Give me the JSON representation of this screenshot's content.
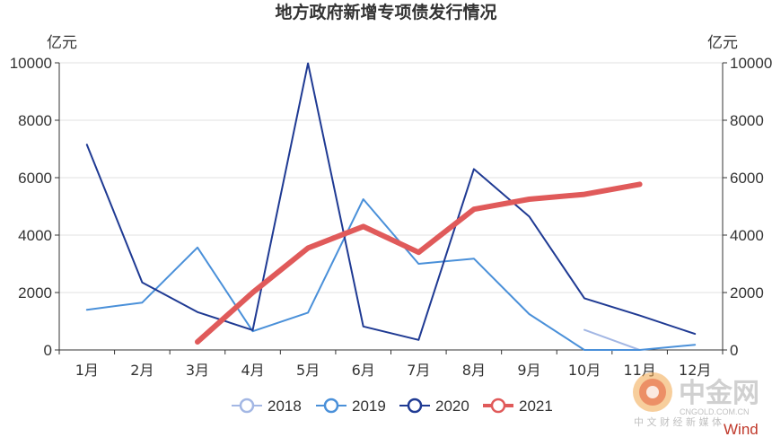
{
  "chart_data": {
    "type": "line",
    "title": "地方政府新增专项债发行情况",
    "ylabel_left": "亿元",
    "ylabel_right": "亿元",
    "ylim": [
      0,
      10000
    ],
    "yticks": [
      "0",
      "2000",
      "4000",
      "6000",
      "8000",
      "10000"
    ],
    "categories": [
      "1月",
      "2月",
      "3月",
      "4月",
      "5月",
      "6月",
      "7月",
      "8月",
      "9月",
      "10月",
      "11月",
      "12月"
    ],
    "grid": true,
    "legend_position": "bottom",
    "series": [
      {
        "name": "2018",
        "color": "#a3b7e4",
        "width": 2,
        "values": [
          null,
          null,
          null,
          null,
          null,
          null,
          null,
          null,
          null,
          700,
          0,
          null
        ]
      },
      {
        "name": "2019",
        "color": "#4a90d9",
        "width": 2,
        "values": [
          1400,
          1650,
          3570,
          650,
          1300,
          5250,
          3000,
          3180,
          1250,
          0,
          0,
          180
        ]
      },
      {
        "name": "2020",
        "color": "#1f3a93",
        "width": 2,
        "values": [
          7150,
          2350,
          1320,
          690,
          9980,
          820,
          350,
          6300,
          4650,
          1800,
          1200,
          560
        ]
      },
      {
        "name": "2021",
        "color": "#e05a5a",
        "width": 6,
        "values": [
          null,
          null,
          280,
          2000,
          3550,
          4300,
          3400,
          4900,
          5250,
          5420,
          5770,
          null
        ]
      }
    ]
  },
  "watermark": {
    "brand": "中金网",
    "domain": "CNGOLD.COM.CN",
    "tagline": "中 文 财 经 新 媒 体",
    "source": "Wind"
  }
}
